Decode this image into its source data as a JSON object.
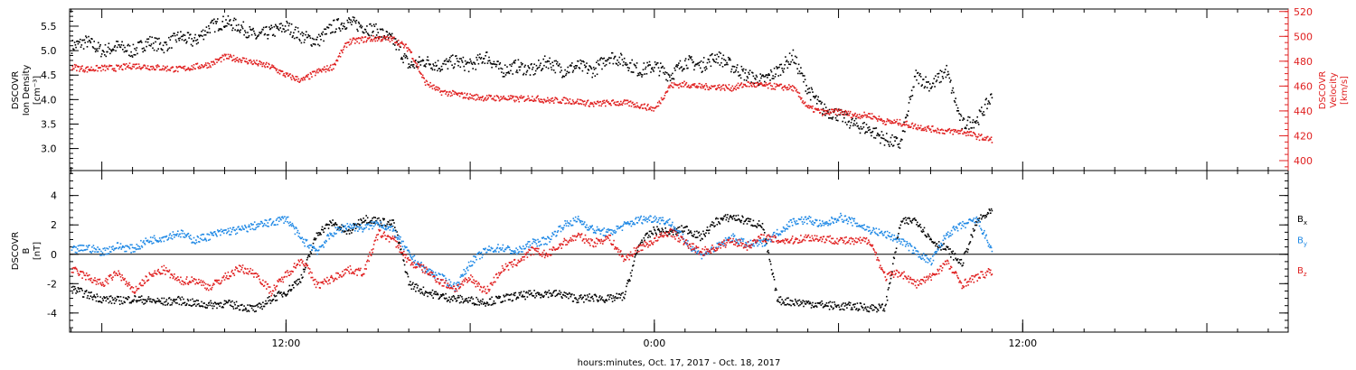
{
  "chart_data": [
    {
      "type": "scatter",
      "panel": "top",
      "ylabel_left": [
        "DSCOVR",
        "Ion Density",
        "[cm⁻³]"
      ],
      "ylabel_right": [
        "DSCOVR",
        "Velocity",
        "[km/s]"
      ],
      "ylim_left": [
        2.55,
        5.85
      ],
      "ylim_right": [
        392,
        522
      ],
      "yticks_left": [
        {
          "v": 3.0,
          "t": "3.0"
        },
        {
          "v": 3.5,
          "t": "3.5"
        },
        {
          "v": 4.0,
          "t": "4.0"
        },
        {
          "v": 4.5,
          "t": "4.5"
        },
        {
          "v": 5.0,
          "t": "5.0"
        },
        {
          "v": 5.5,
          "t": "5.5"
        }
      ],
      "yticks_right": [
        {
          "v": 400,
          "t": "400"
        },
        {
          "v": 420,
          "t": "420"
        },
        {
          "v": 440,
          "t": "440"
        },
        {
          "v": 460,
          "t": "460"
        },
        {
          "v": 480,
          "t": "480"
        },
        {
          "v": 500,
          "t": "500"
        },
        {
          "v": 520,
          "t": "520"
        }
      ],
      "series": [
        {
          "axis": "left",
          "color": "#000000",
          "x": [
            5.0,
            5.5,
            6.0,
            6.5,
            7.0,
            7.5,
            8.0,
            8.5,
            9.0,
            9.5,
            10.0,
            10.5,
            11.0,
            11.5,
            12.0,
            12.5,
            13.0,
            13.5,
            14.0,
            14.5,
            15.0,
            15.5,
            16.0,
            16.5,
            17.0,
            17.5,
            18.0,
            18.5,
            19.0,
            19.5,
            20.0,
            20.5,
            21.0,
            21.5,
            22.0,
            22.5,
            23.0,
            23.5,
            24.0,
            24.5,
            25.0,
            25.5,
            26.0,
            26.5,
            27.0,
            27.5,
            28.0,
            28.5,
            29.0,
            29.5,
            30.0,
            30.5,
            31.0,
            31.5,
            32.0,
            32.5,
            33.0,
            33.5,
            34.0,
            34.5,
            35.0
          ],
          "y": [
            5.1,
            5.2,
            5.0,
            5.1,
            5.0,
            5.2,
            5.1,
            5.3,
            5.2,
            5.5,
            5.6,
            5.5,
            5.3,
            5.4,
            5.5,
            5.3,
            5.2,
            5.5,
            5.6,
            5.5,
            5.4,
            5.2,
            4.7,
            4.8,
            4.7,
            4.8,
            4.7,
            4.9,
            4.6,
            4.7,
            4.6,
            4.8,
            4.6,
            4.7,
            4.6,
            4.9,
            4.8,
            4.6,
            4.7,
            4.5,
            4.8,
            4.7,
            4.9,
            4.7,
            4.5,
            4.4,
            4.6,
            4.9,
            4.2,
            3.8,
            3.7,
            3.5,
            3.4,
            3.2,
            3.1,
            4.5,
            4.3,
            4.6,
            3.5,
            3.6,
            4.1
          ]
        },
        {
          "axis": "right",
          "color": "#e02020",
          "x": [
            5.0,
            5.5,
            6.0,
            6.5,
            7.0,
            7.5,
            8.0,
            8.5,
            9.0,
            9.5,
            10.0,
            10.5,
            11.0,
            11.5,
            12.0,
            12.5,
            13.0,
            13.5,
            14.0,
            14.5,
            15.0,
            15.5,
            16.0,
            16.5,
            17.0,
            17.5,
            18.0,
            18.5,
            19.0,
            19.5,
            20.0,
            20.5,
            21.0,
            21.5,
            22.0,
            22.5,
            23.0,
            23.5,
            24.0,
            24.5,
            25.0,
            25.5,
            26.0,
            26.5,
            27.0,
            27.5,
            28.0,
            28.5,
            29.0,
            29.5,
            30.0,
            30.5,
            31.0,
            31.5,
            32.0,
            32.5,
            33.0,
            33.5,
            34.0,
            34.5,
            35.0
          ],
          "y": [
            476,
            474,
            475,
            475,
            477,
            476,
            475,
            474,
            476,
            478,
            484,
            482,
            479,
            476,
            469,
            465,
            472,
            476,
            496,
            498,
            499,
            498,
            490,
            464,
            456,
            454,
            452,
            451,
            451,
            450,
            451,
            449,
            449,
            448,
            446,
            447,
            447,
            445,
            442,
            461,
            462,
            460,
            460,
            459,
            462,
            461,
            460,
            459,
            443,
            439,
            440,
            437,
            437,
            432,
            431,
            428,
            426,
            424,
            424,
            420,
            417
          ]
        }
      ]
    },
    {
      "type": "scatter",
      "panel": "bottom",
      "ylabel_left": [
        "DSCOVR",
        "B",
        "[nT]"
      ],
      "ylim": [
        -5.3,
        5.7
      ],
      "yticks": [
        {
          "v": -4,
          "t": "-4"
        },
        {
          "v": -2,
          "t": "-2"
        },
        {
          "v": 0,
          "t": "0"
        },
        {
          "v": 2,
          "t": "2"
        },
        {
          "v": 4,
          "t": "4"
        }
      ],
      "zero_line": true,
      "series": [
        {
          "name": "Bx",
          "color": "#000000",
          "x": [
            5.0,
            5.5,
            6.0,
            6.5,
            7.0,
            7.5,
            8.0,
            8.5,
            9.0,
            9.5,
            10.0,
            10.5,
            11.0,
            11.5,
            12.0,
            12.5,
            13.0,
            13.5,
            14.0,
            14.5,
            15.0,
            15.5,
            16.0,
            16.5,
            17.0,
            17.5,
            18.0,
            18.5,
            19.0,
            19.5,
            20.0,
            20.5,
            21.0,
            21.5,
            22.0,
            22.5,
            23.0,
            23.5,
            24.0,
            24.5,
            25.0,
            25.5,
            26.0,
            26.5,
            27.0,
            27.5,
            28.0,
            28.5,
            29.0,
            29.5,
            30.0,
            30.5,
            31.0,
            31.5,
            32.0,
            32.5,
            33.0,
            33.5,
            34.0,
            34.5,
            35.0
          ],
          "y": [
            -2.3,
            -2.7,
            -3.0,
            -3.1,
            -3.0,
            -3.1,
            -3.2,
            -3.1,
            -3.3,
            -3.4,
            -3.3,
            -3.5,
            -3.7,
            -3.0,
            -2.5,
            -1.5,
            1.5,
            2.2,
            1.5,
            2.5,
            2.3,
            2.1,
            -2.0,
            -2.5,
            -2.8,
            -3.0,
            -3.1,
            -3.2,
            -3.0,
            -2.8,
            -2.7,
            -2.6,
            -2.7,
            -3.0,
            -2.9,
            -3.0,
            -2.8,
            0.8,
            1.7,
            1.5,
            1.8,
            1.2,
            2.3,
            2.6,
            2.3,
            2.0,
            -3.1,
            -3.2,
            -3.3,
            -3.4,
            -3.5,
            -3.5,
            -3.6,
            -3.6,
            2.2,
            2.4,
            1.0,
            0.4,
            -0.6,
            2.3,
            3.0
          ]
        },
        {
          "name": "By",
          "color": "#1e88e5",
          "x": [
            5.0,
            5.5,
            6.0,
            6.5,
            7.0,
            7.5,
            8.0,
            8.5,
            9.0,
            9.5,
            10.0,
            10.5,
            11.0,
            11.5,
            12.0,
            12.5,
            13.0,
            13.5,
            14.0,
            14.5,
            15.0,
            15.5,
            16.0,
            16.5,
            17.0,
            17.5,
            18.0,
            18.5,
            19.0,
            19.5,
            20.0,
            20.5,
            21.0,
            21.5,
            22.0,
            22.5,
            23.0,
            23.5,
            24.0,
            24.5,
            25.0,
            25.5,
            26.0,
            26.5,
            27.0,
            27.5,
            28.0,
            28.5,
            29.0,
            29.5,
            30.0,
            30.5,
            31.0,
            31.5,
            32.0,
            32.5,
            33.0,
            33.5,
            34.0,
            34.5,
            35.0
          ],
          "y": [
            0.3,
            0.5,
            0.2,
            0.6,
            0.4,
            1.0,
            1.2,
            1.5,
            1.0,
            1.3,
            1.6,
            1.7,
            2.0,
            2.2,
            2.5,
            1.0,
            0.3,
            1.5,
            2.0,
            1.8,
            2.2,
            1.6,
            0.0,
            -1.0,
            -1.5,
            -2.2,
            -0.5,
            0.3,
            0.5,
            0.2,
            0.8,
            1.0,
            2.0,
            2.4,
            1.7,
            1.5,
            2.0,
            2.4,
            2.5,
            2.2,
            0.9,
            0.0,
            0.5,
            1.2,
            0.7,
            0.8,
            1.5,
            2.3,
            2.4,
            2.0,
            2.6,
            2.2,
            1.7,
            1.4,
            1.0,
            0.2,
            -0.5,
            1.4,
            2.0,
            2.4,
            0.2
          ]
        },
        {
          "name": "Bz",
          "color": "#e02020",
          "x": [
            5.0,
            5.5,
            6.0,
            6.5,
            7.0,
            7.5,
            8.0,
            8.5,
            9.0,
            9.5,
            10.0,
            10.5,
            11.0,
            11.5,
            12.0,
            12.5,
            13.0,
            13.5,
            14.0,
            14.5,
            15.0,
            15.5,
            16.0,
            16.5,
            17.0,
            17.5,
            18.0,
            18.5,
            19.0,
            19.5,
            20.0,
            20.5,
            21.0,
            21.5,
            22.0,
            22.5,
            23.0,
            23.5,
            24.0,
            24.5,
            25.0,
            25.5,
            26.0,
            26.5,
            27.0,
            27.5,
            28.0,
            28.5,
            29.0,
            29.5,
            30.0,
            30.5,
            31.0,
            31.5,
            32.0,
            32.5,
            33.0,
            33.5,
            34.0,
            34.5,
            35.0
          ],
          "y": [
            -1.0,
            -1.5,
            -2.0,
            -1.2,
            -2.5,
            -1.5,
            -1.0,
            -1.8,
            -1.7,
            -2.2,
            -1.5,
            -0.9,
            -1.3,
            -2.5,
            -1.3,
            -0.3,
            -2.1,
            -1.6,
            -1.0,
            -1.2,
            1.5,
            1.0,
            -0.5,
            -1.0,
            -1.8,
            -2.3,
            -1.6,
            -2.5,
            -1.0,
            -0.5,
            0.3,
            0.0,
            0.8,
            1.3,
            0.8,
            1.2,
            -0.3,
            0.5,
            1.0,
            1.6,
            0.8,
            0.2,
            0.5,
            1.0,
            0.6,
            1.2,
            1.0,
            1.0,
            1.2,
            1.1,
            1.0,
            0.9,
            1.0,
            -1.5,
            -1.2,
            -2.0,
            -1.5,
            -0.5,
            -2.0,
            -1.5,
            -1.1
          ]
        }
      ],
      "legend": [
        {
          "text": "B",
          "sub": "x",
          "color": "#000000",
          "v": 2.45
        },
        {
          "text": "B",
          "sub": "y",
          "color": "#1e88e5",
          "v": 1.0
        },
        {
          "text": "B",
          "sub": "z",
          "color": "#e02020",
          "v": -1.05
        }
      ]
    }
  ],
  "x_axis": {
    "unit": "hours",
    "xlim": [
      4.95,
      44.65
    ],
    "ticks": [
      {
        "v": 12,
        "t": "12:00"
      },
      {
        "v": 24,
        "t": "0:00"
      },
      {
        "v": 36,
        "t": "12:00"
      }
    ],
    "minor_step": 1,
    "major_step": 6,
    "xlabel": "hours:minutes, Oct. 17, 2017 - Oct. 18, 2017"
  }
}
